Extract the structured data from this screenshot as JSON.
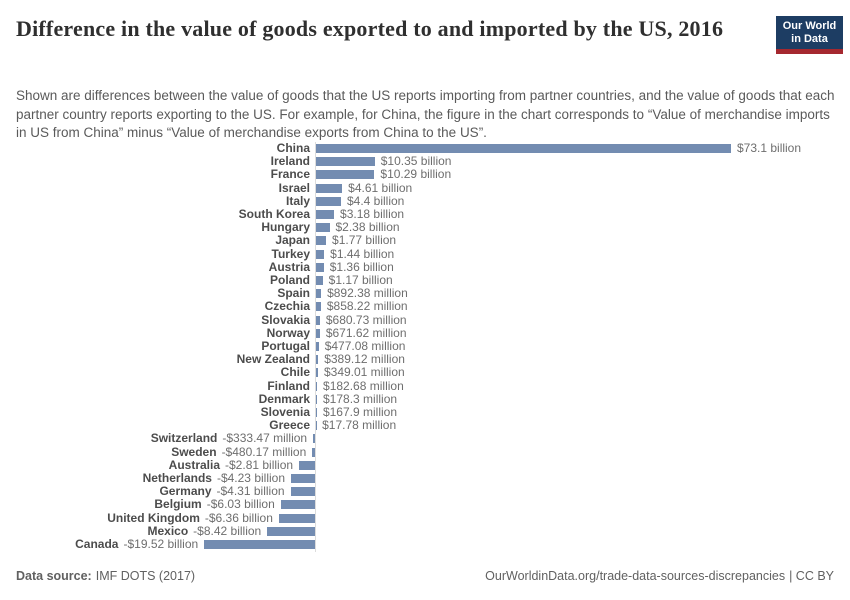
{
  "header": {
    "title": "Difference in the value of goods exported to and imported by the US, 2016",
    "subtitle": "Shown are differences between the value of goods that the US reports importing from partner countries, and the value of goods that each partner country reports exporting to the US. For example, for China, the figure in the chart corresponds to “Value of merchandise imports in US from China” minus “Value of merchandise exports from China to the US”."
  },
  "logo": {
    "line1": "Our World",
    "line2": "in Data",
    "bg_color": "#1d3d63",
    "accent_color": "#a5282f"
  },
  "chart_data": {
    "type": "bar",
    "orientation": "horizontal",
    "value_unit": "US dollars",
    "bar_color": "#738cb1",
    "axis_line_color": "#dcdcdc",
    "xlim_billion": [
      -20,
      94
    ],
    "grid": false,
    "legend": "none",
    "categories": [
      "China",
      "Ireland",
      "France",
      "Israel",
      "Italy",
      "South Korea",
      "Hungary",
      "Japan",
      "Turkey",
      "Austria",
      "Poland",
      "Spain",
      "Czechia",
      "Slovakia",
      "Norway",
      "Portugal",
      "New Zealand",
      "Chile",
      "Finland",
      "Denmark",
      "Slovenia",
      "Greece",
      "Switzerland",
      "Sweden",
      "Australia",
      "Netherlands",
      "Germany",
      "Belgium",
      "United Kingdom",
      "Mexico",
      "Canada"
    ],
    "values_billion": [
      73.1,
      10.35,
      10.29,
      4.61,
      4.4,
      3.18,
      2.38,
      1.77,
      1.44,
      1.36,
      1.17,
      0.89238,
      0.85822,
      0.68073,
      0.67162,
      0.47708,
      0.38912,
      0.34901,
      0.18268,
      0.1783,
      0.1679,
      0.01778,
      -0.33347,
      -0.48017,
      -2.81,
      -4.23,
      -4.31,
      -6.03,
      -6.36,
      -8.42,
      -19.52
    ],
    "value_labels": [
      "$73.1 billion",
      "$10.35 billion",
      "$10.29 billion",
      "$4.61 billion",
      "$4.4 billion",
      "$3.18 billion",
      "$2.38 billion",
      "$1.77 billion",
      "$1.44 billion",
      "$1.36 billion",
      "$1.17 billion",
      "$892.38 million",
      "$858.22 million",
      "$680.73 million",
      "$671.62 million",
      "$477.08 million",
      "$389.12 million",
      "$349.01 million",
      "$182.68 million",
      "$178.3 million",
      "$167.9 million",
      "$17.78 million",
      "-$333.47 million",
      "-$480.17 million",
      "-$2.81 billion",
      "-$4.23 billion",
      "-$4.31 billion",
      "-$6.03 billion",
      "-$6.36 billion",
      "-$8.42 billion",
      "-$19.52 billion"
    ]
  },
  "footer": {
    "datasource_label": "Data source:",
    "datasource_value": "IMF DOTS (2017)",
    "url_text": "OurWorldinData.org/trade-data-sources-discrepancies",
    "license_suffix": "| CC BY"
  }
}
